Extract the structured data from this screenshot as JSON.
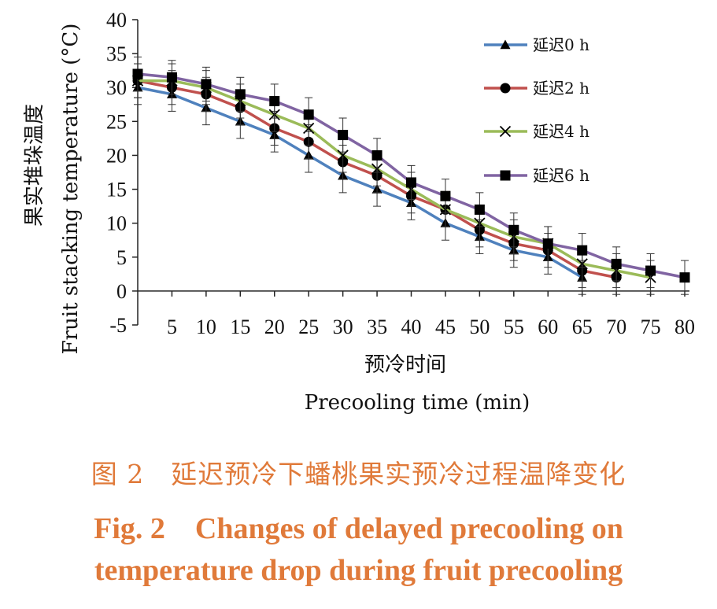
{
  "chart_data": {
    "type": "line",
    "xlabel_cn": "预冷时间",
    "xlabel": "Precooling time (min)",
    "ylabel_cn": "果实堆垛温度",
    "ylabel": "Fruit stacking temperature (°C)",
    "x_ticks": [
      "5",
      "10",
      "15",
      "20",
      "25",
      "30",
      "35",
      "40",
      "45",
      "50",
      "55",
      "60",
      "65",
      "70",
      "75",
      "80"
    ],
    "y_ticks": [
      "40",
      "35",
      "30",
      "25",
      "20",
      "15",
      "10",
      "5",
      "0",
      "-5"
    ],
    "xlim": [
      0,
      80
    ],
    "ylim": [
      -5,
      40
    ],
    "legend_position": "top-right",
    "grid": false,
    "series": [
      {
        "name": "延迟0 h",
        "color": "#4f81bd",
        "marker": "triangle",
        "x": [
          0,
          5,
          10,
          15,
          20,
          25,
          30,
          35,
          40,
          45,
          50,
          55,
          60,
          65
        ],
        "y": [
          30,
          29,
          27,
          25,
          23,
          20,
          17,
          15,
          13,
          10,
          8,
          6,
          5,
          2
        ],
        "err": [
          2.5,
          2.5,
          2.5,
          2.5,
          2.5,
          2.5,
          2.5,
          2.5,
          2.5,
          2.5,
          2.5,
          2.5,
          2.5,
          2.5
        ]
      },
      {
        "name": "延迟2 h",
        "color": "#c0504d",
        "marker": "circle",
        "x": [
          0,
          5,
          10,
          15,
          20,
          25,
          30,
          35,
          40,
          45,
          50,
          55,
          60,
          65,
          70
        ],
        "y": [
          31,
          30,
          29,
          27,
          24,
          22,
          19,
          17,
          14,
          12,
          9,
          7,
          6,
          3,
          2
        ],
        "err": [
          2.5,
          2.5,
          2.5,
          2.5,
          2.5,
          2.5,
          2.5,
          2.5,
          2.5,
          2.5,
          2.5,
          2.5,
          2.5,
          2.5,
          2.5
        ]
      },
      {
        "name": "延迟4 h",
        "color": "#9bbb59",
        "marker": "x",
        "x": [
          0,
          5,
          10,
          15,
          20,
          25,
          30,
          35,
          40,
          45,
          50,
          55,
          60,
          65,
          70,
          75
        ],
        "y": [
          31,
          31,
          30,
          28,
          26,
          24,
          20,
          18,
          15,
          12,
          10,
          8,
          7,
          4,
          3,
          2
        ],
        "err": [
          2.5,
          2.5,
          2.5,
          2.5,
          2.5,
          2.5,
          2.5,
          2.5,
          2.5,
          2.5,
          2.5,
          2.5,
          2.5,
          2.5,
          2.5,
          2.5
        ]
      },
      {
        "name": "延迟6 h",
        "color": "#8064a2",
        "marker": "square",
        "x": [
          0,
          5,
          10,
          15,
          20,
          25,
          30,
          35,
          40,
          45,
          50,
          55,
          60,
          65,
          70,
          75,
          80
        ],
        "y": [
          32,
          31.5,
          30.5,
          29,
          28,
          26,
          23,
          20,
          16,
          14,
          12,
          9,
          7,
          6,
          4,
          3,
          2
        ],
        "err": [
          2.5,
          2.5,
          2.5,
          2.5,
          2.5,
          2.5,
          2.5,
          2.5,
          2.5,
          2.5,
          2.5,
          2.5,
          2.5,
          2.5,
          2.5,
          2.5,
          2.5
        ]
      }
    ]
  },
  "caption": {
    "cn": "图 2　延迟预冷下蟠桃果实预冷过程温降变化",
    "en_line1": "Fig. 2　Changes of delayed precooling on",
    "en_line2": "temperature drop during fruit precooling"
  }
}
